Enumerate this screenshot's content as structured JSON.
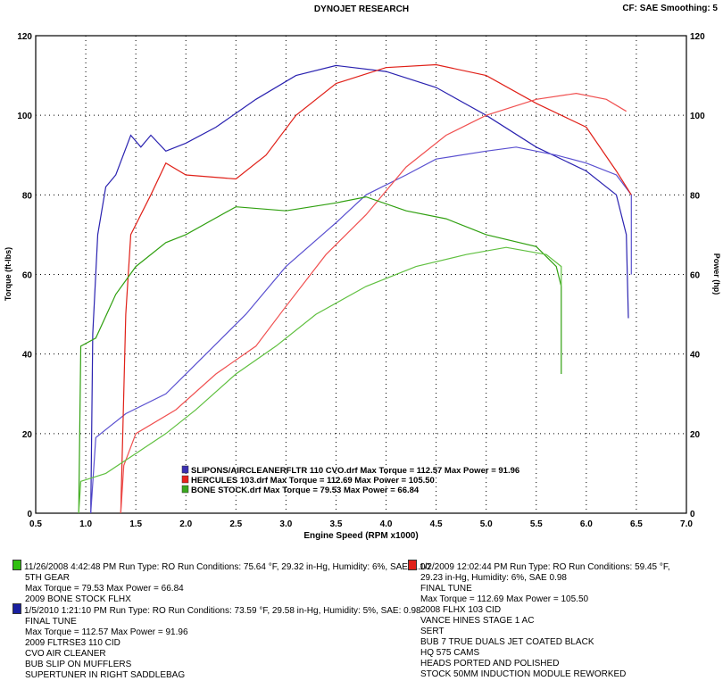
{
  "header": {
    "title": "DYNOJET RESEARCH",
    "right": "CF: SAE  Smoothing: 5"
  },
  "chart_data": {
    "type": "line",
    "title": "DYNOJET RESEARCH",
    "xlabel": "Engine Speed (RPM x1000)",
    "ylabel": "Torque (ft-lbs)",
    "y2label": "Power (hp)",
    "xlim": [
      0.5,
      7.0
    ],
    "ylim": [
      0,
      120
    ],
    "grid": true,
    "xticks": [
      "0.5",
      "1.0",
      "1.5",
      "2.0",
      "2.5",
      "3.0",
      "3.5",
      "4.0",
      "4.5",
      "5.0",
      "5.5",
      "6.0",
      "6.5",
      "7.0"
    ],
    "yticks": [
      "0",
      "20",
      "40",
      "60",
      "80",
      "100",
      "120"
    ],
    "legend": {
      "placement": "bottom-center",
      "entries": [
        {
          "label": "SLIPONS/AIRCLEANERFLTR 110 CVO.drf Max Torque = 112.57     Max Power = 91.96",
          "color": "#3a2fb0"
        },
        {
          "label": "HERCULES 103.drf  Max Torque = 112.69     Max Power = 105.50",
          "color": "#e8221c"
        },
        {
          "label": "BONE STOCK.drf Max Torque = 79.53     Max Power = 66.84",
          "color": "#3aa81e"
        }
      ]
    },
    "series": [
      {
        "name": "SLIPONS torque",
        "color": "#2a22b0",
        "x": [
          1.05,
          1.07,
          1.12,
          1.2,
          1.3,
          1.45,
          1.55,
          1.65,
          1.8,
          2.0,
          2.3,
          2.7,
          3.1,
          3.5,
          4.0,
          4.5,
          5.0,
          5.5,
          6.0,
          6.3,
          6.4,
          6.42
        ],
        "y": [
          0,
          45,
          70,
          82,
          85,
          95,
          92,
          95,
          91,
          93,
          97,
          104,
          110,
          112.5,
          111,
          107,
          100,
          92,
          86,
          80,
          70,
          49
        ]
      },
      {
        "name": "SLIPONS power",
        "color": "#5a50d0",
        "x": [
          1.05,
          1.1,
          1.4,
          1.8,
          2.2,
          2.6,
          3.0,
          3.5,
          3.8,
          4.2,
          4.5,
          5.0,
          5.3,
          5.7,
          6.0,
          6.3,
          6.45,
          6.45
        ],
        "y": [
          0,
          19,
          25,
          30,
          40,
          50,
          62,
          73,
          80,
          85,
          89,
          91,
          92,
          90,
          88,
          85,
          80,
          60
        ]
      },
      {
        "name": "HERCULES torque",
        "color": "#e02018",
        "x": [
          1.35,
          1.4,
          1.45,
          1.65,
          1.8,
          2.0,
          2.5,
          2.8,
          3.1,
          3.5,
          4.0,
          4.5,
          5.0,
          5.5,
          6.0,
          6.3,
          6.45
        ],
        "y": [
          0,
          50,
          70,
          80,
          88,
          85,
          84,
          90,
          100,
          108,
          112,
          112.7,
          110,
          103,
          97,
          86,
          80
        ]
      },
      {
        "name": "HERCULES power",
        "color": "#f05050",
        "x": [
          1.35,
          1.38,
          1.5,
          1.9,
          2.3,
          2.7,
          3.0,
          3.4,
          3.8,
          4.2,
          4.6,
          5.0,
          5.5,
          5.9,
          6.2,
          6.4
        ],
        "y": [
          0,
          12,
          20,
          26,
          35,
          42,
          52,
          65,
          75,
          87,
          95,
          100,
          104,
          105.5,
          104,
          101
        ]
      },
      {
        "name": "BONE STOCK torque",
        "color": "#30a010",
        "x": [
          0.93,
          0.95,
          1.1,
          1.3,
          1.5,
          1.8,
          2.0,
          2.5,
          3.0,
          3.5,
          3.8,
          4.2,
          4.6,
          5.0,
          5.5,
          5.7,
          5.75,
          5.75
        ],
        "y": [
          0,
          42,
          44,
          55,
          62,
          68,
          70,
          77,
          76,
          78,
          79.5,
          76,
          74,
          70,
          67,
          62,
          57,
          35
        ]
      },
      {
        "name": "BONE STOCK power",
        "color": "#60c040",
        "x": [
          0.93,
          0.95,
          1.2,
          1.5,
          1.8,
          2.1,
          2.5,
          2.9,
          3.3,
          3.8,
          4.3,
          4.8,
          5.2,
          5.6,
          5.75,
          5.75
        ],
        "y": [
          0,
          8,
          10,
          15,
          20,
          26,
          35,
          42,
          50,
          57,
          62,
          65,
          66.8,
          65,
          62,
          57
        ]
      }
    ]
  },
  "runs": {
    "green": {
      "line1": "11/26/2008 4:42:48 PM  Run Type: RO  Run Conditions: 75.64 °F, 29.32 in-Hg,  Humidity:  6%, SAE: 1.00",
      "lines": [
        "5TH GEAR",
        "Max Torque = 79.53  Max Power = 66.84",
        "2009 BONE STOCK FLHX"
      ]
    },
    "blue": {
      "line1": "1/5/2010 1:21:10 PM  Run Type: RO  Run Conditions: 73.59 °F, 29.58 in-Hg,  Humidity:  5%, SAE: 0.98",
      "lines": [
        "FINAL TUNE",
        "Max Torque = 112.57  Max Power = 91.96",
        "2009 FLTRSE3 110 CID",
        "CVO AIR CLEANER",
        "BUB SLIP ON MUFFLERS",
        "SUPERTUNER IN RIGHT SADDLEBAG"
      ]
    },
    "red": {
      "line1": "1/2/2009 12:02:44 PM  Run Type: RO  Run Conditions: 59.45 °F,",
      "lines": [
        "29.23 in-Hg,  Humidity:  6%, SAE  0.98",
        "FINAL TUNE",
        "Max Torque = 112.69  Max Power = 105.50",
        "2008 FLHX 103 CID",
        "VANCE  HINES STAGE 1 AC",
        "SERT",
        "BUB 7 TRUE DUALS JET COATED BLACK",
        "HQ 575 CAMS",
        "HEADS PORTED AND POLISHED",
        "STOCK 50MM INDUCTION MODULE REWORKED"
      ]
    }
  }
}
